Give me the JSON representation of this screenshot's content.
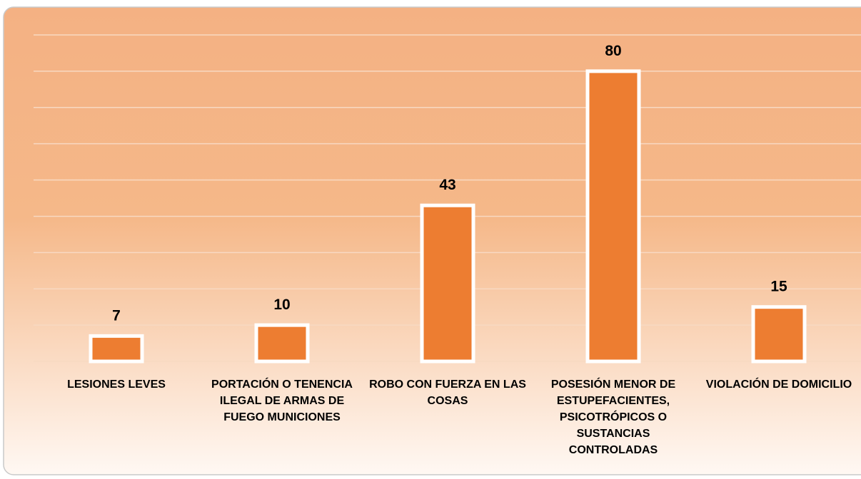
{
  "chart_data": {
    "type": "bar",
    "categories": [
      "LESIONES LEVES",
      "PORTACIÓN O TENENCIA ILEGAL DE ARMAS DE FUEGO MUNICIONES",
      "ROBO CON FUERZA EN LAS COSAS",
      "POSESIÓN MENOR DE ESTUPEFACIENTES, PSICOTRÓPICOS O SUSTANCIAS CONTROLADAS",
      "VIOLACIÓN DE DOMICILIO"
    ],
    "values": [
      7,
      10,
      43,
      80,
      15
    ],
    "color": "#ed7d31",
    "ylim": [
      0,
      90
    ],
    "yticks": [
      0,
      10,
      20,
      30,
      40,
      50,
      60,
      70,
      80,
      90
    ],
    "grid": true
  }
}
